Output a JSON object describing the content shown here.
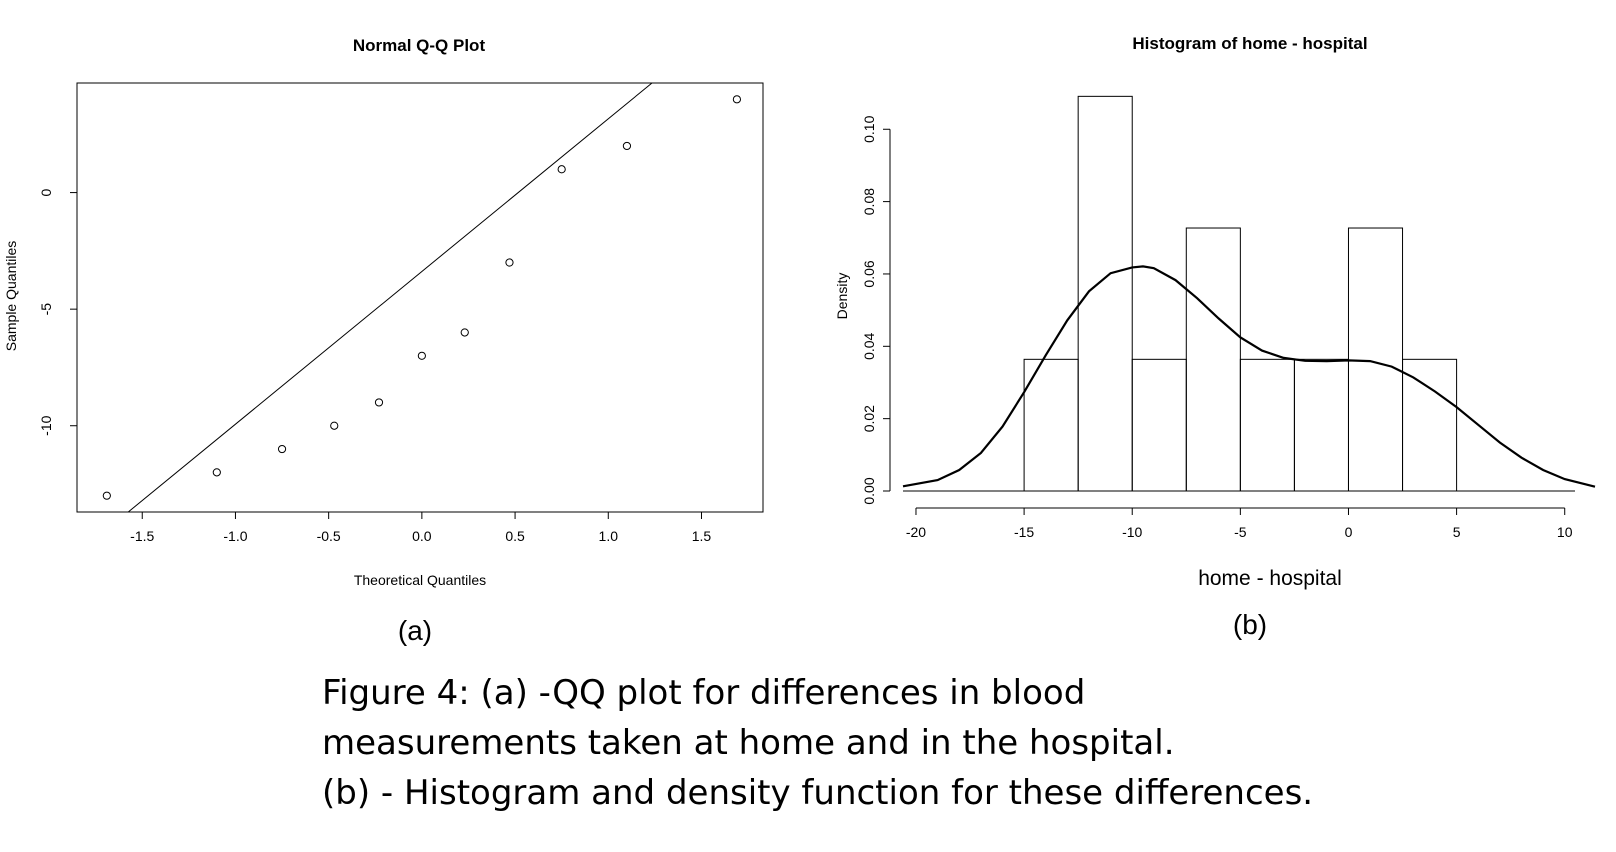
{
  "panel_labels": {
    "a": "(a)",
    "b": "(b)"
  },
  "caption": {
    "line1": "Figure 4: (a) -QQ plot for differences in blood",
    "line2": "measurements taken at home and in the hospital.",
    "line3": "(b) - Histogram and density function for these differences."
  },
  "chart_data": [
    {
      "type": "scatter",
      "title": "Normal Q-Q Plot",
      "xlabel": "Theoretical Quantiles",
      "ylabel": "Sample Quantiles",
      "xlim": [
        -1.85,
        1.83
      ],
      "ylim": [
        -13.7,
        4.7
      ],
      "xticks": [
        -1.5,
        -1.0,
        -0.5,
        0.0,
        0.5,
        1.0,
        1.5
      ],
      "xtick_labels": [
        "-1.5",
        "-1.0",
        "-0.5",
        "0.0",
        "0.5",
        "1.0",
        "1.5"
      ],
      "yticks": [
        0,
        -5,
        -10
      ],
      "ytick_labels": [
        "0",
        "-5",
        "-10"
      ],
      "points": [
        {
          "x": -1.69,
          "y": -13
        },
        {
          "x": -1.1,
          "y": -12
        },
        {
          "x": -0.75,
          "y": -11
        },
        {
          "x": -0.47,
          "y": -10
        },
        {
          "x": -0.23,
          "y": -9
        },
        {
          "x": 0.0,
          "y": -7
        },
        {
          "x": 0.23,
          "y": -6
        },
        {
          "x": 0.47,
          "y": -3
        },
        {
          "x": 0.75,
          "y": 1
        },
        {
          "x": 1.1,
          "y": 2
        },
        {
          "x": 1.69,
          "y": 4
        }
      ],
      "reference_line": {
        "x0": -1.85,
        "y0": -15.5,
        "x1": 1.83,
        "y1": 8.6
      }
    },
    {
      "type": "bar",
      "title": "Histogram of home - hospital",
      "xlabel": "home - hospital",
      "ylabel": "Density",
      "xlim": [
        -20.6,
        11.4
      ],
      "ylim": [
        0,
        0.115
      ],
      "xticks": [
        -20,
        -15,
        -10,
        -5,
        0,
        5,
        10
      ],
      "xtick_labels": [
        "-20",
        "-15",
        "-10",
        "-5",
        "0",
        "5",
        "10"
      ],
      "yticks": [
        0.0,
        0.02,
        0.04,
        0.06,
        0.08,
        0.1
      ],
      "ytick_labels": [
        "0.00",
        "0.02",
        "0.04",
        "0.06",
        "0.08",
        "0.10"
      ],
      "bins": [
        {
          "x0": -15,
          "x1": -12.5,
          "density": 0.0364
        },
        {
          "x0": -12.5,
          "x1": -10,
          "density": 0.1091
        },
        {
          "x0": -10,
          "x1": -7.5,
          "density": 0.0364
        },
        {
          "x0": -7.5,
          "x1": -5,
          "density": 0.0727
        },
        {
          "x0": -5,
          "x1": -2.5,
          "density": 0.0364
        },
        {
          "x0": -2.5,
          "x1": 0,
          "density": 0.0364
        },
        {
          "x0": 0,
          "x1": 2.5,
          "density": 0.0727
        },
        {
          "x0": 2.5,
          "x1": 5,
          "density": 0.0364
        }
      ],
      "density_curve": {
        "x": [
          -20.6,
          -19,
          -18,
          -17,
          -16,
          -15,
          -14,
          -13,
          -12,
          -11,
          -10,
          -9.5,
          -9,
          -8,
          -7,
          -6,
          -5,
          -4,
          -3,
          -2,
          -1,
          0,
          1,
          2,
          3,
          4,
          5,
          6,
          7,
          8,
          9,
          10,
          11.4
        ],
        "y": [
          0.0013,
          0.003,
          0.0058,
          0.0105,
          0.0178,
          0.0273,
          0.0375,
          0.0472,
          0.0552,
          0.0602,
          0.0618,
          0.0621,
          0.0616,
          0.0583,
          0.0533,
          0.0477,
          0.0425,
          0.0388,
          0.0368,
          0.036,
          0.0359,
          0.0361,
          0.0359,
          0.0344,
          0.0314,
          0.0275,
          0.0232,
          0.0183,
          0.0134,
          0.0092,
          0.0058,
          0.0033,
          0.0012
        ]
      }
    }
  ]
}
